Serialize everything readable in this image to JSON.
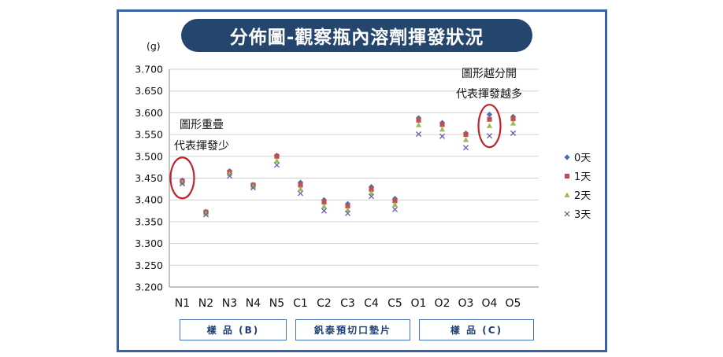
{
  "title": "分佈圖-觀察瓶內溶劑揮發狀況",
  "chart_data": {
    "type": "scatter",
    "y_unit": "(g)",
    "ylim": [
      3.2,
      3.7
    ],
    "yticks": [
      "3.200",
      "3.250",
      "3.300",
      "3.350",
      "3.400",
      "3.450",
      "3.500",
      "3.550",
      "3.600",
      "3.650",
      "3.700"
    ],
    "categories": [
      "N1",
      "N2",
      "N3",
      "N4",
      "N5",
      "C1",
      "C2",
      "C3",
      "C4",
      "C5",
      "O1",
      "O2",
      "O3",
      "O4",
      "O5"
    ],
    "grid": "horizontal",
    "legend_position": "right",
    "series": [
      {
        "name": "0天",
        "marker": "diamond",
        "color": "#4a6fb5",
        "values": [
          3.445,
          3.373,
          3.466,
          3.435,
          3.502,
          3.44,
          3.4,
          3.391,
          3.43,
          3.403,
          3.588,
          3.577,
          3.553,
          3.596,
          3.591
        ]
      },
      {
        "name": "1天",
        "marker": "square",
        "color": "#c0504d",
        "values": [
          3.443,
          3.372,
          3.464,
          3.434,
          3.5,
          3.434,
          3.395,
          3.386,
          3.424,
          3.398,
          3.583,
          3.573,
          3.55,
          3.585,
          3.586
        ]
      },
      {
        "name": "2天",
        "marker": "triangle",
        "color": "#9bbb59",
        "values": [
          3.44,
          3.369,
          3.46,
          3.431,
          3.49,
          3.425,
          3.385,
          3.377,
          3.416,
          3.389,
          3.572,
          3.562,
          3.538,
          3.57,
          3.576
        ]
      },
      {
        "name": "3天",
        "marker": "x",
        "color": "#6d5ca8",
        "values": [
          3.437,
          3.366,
          3.455,
          3.428,
          3.48,
          3.415,
          3.375,
          3.369,
          3.408,
          3.378,
          3.551,
          3.546,
          3.52,
          3.547,
          3.553
        ]
      }
    ],
    "annotations": [
      {
        "lines": [
          "圖形重疊",
          "代表揮發少"
        ],
        "target": "N1",
        "circle_color": "#c0232b"
      },
      {
        "lines": [
          "圖形越分開",
          "代表揮發越多"
        ],
        "target": "O4",
        "circle_color": "#c0232b"
      }
    ],
    "groups": [
      {
        "label": "樣 品 (B)",
        "categories": [
          "N1",
          "N5"
        ]
      },
      {
        "label": "釩泰預切口墊片",
        "categories": [
          "C1",
          "C5"
        ]
      },
      {
        "label": "樣 品 (C)",
        "categories": [
          "O1",
          "O5"
        ]
      }
    ]
  }
}
